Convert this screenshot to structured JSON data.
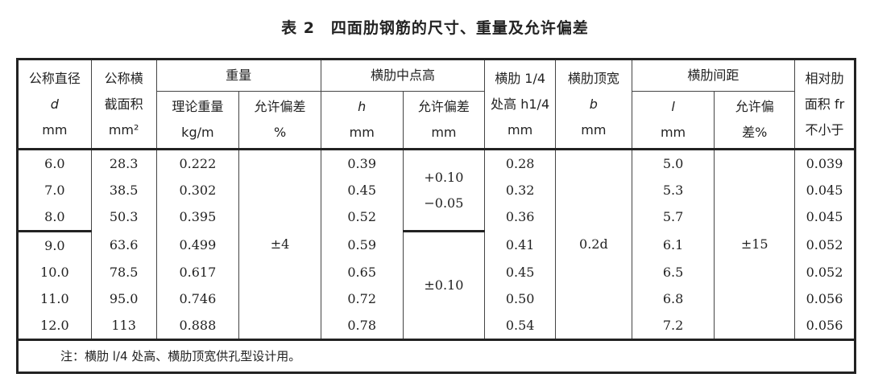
{
  "title": "表 2　四面肋钢筋的尺寸、重量及允许偏差",
  "headers": {
    "d": [
      "公称直径",
      "d",
      "mm"
    ],
    "area": [
      "公称横",
      "截面积",
      "mm²"
    ],
    "weight": "重量",
    "weight_theory": [
      "理论重量",
      "kg/m"
    ],
    "weight_tol": [
      "允许偏差",
      "%"
    ],
    "rib_mid": "横肋中点高",
    "h": [
      "h",
      "mm"
    ],
    "h_tol": [
      "允许偏差",
      "mm"
    ],
    "h14": [
      "横肋 1/4",
      "处高 h1/4",
      "mm"
    ],
    "b": [
      "横肋顶宽",
      "b",
      "mm"
    ],
    "spacing": "横肋间距",
    "l": [
      "l",
      "mm"
    ],
    "l_tol": [
      "允许偏",
      "差%"
    ],
    "fr": [
      "相对肋",
      "面积 fr",
      "不小于"
    ]
  },
  "rows": [
    {
      "d": "6.0",
      "area": "28.3",
      "w": "0.222",
      "h": "0.39",
      "h14": "0.28",
      "l": "5.0",
      "fr": "0.039"
    },
    {
      "d": "7.0",
      "area": "38.5",
      "w": "0.302",
      "h": "0.45",
      "h14": "0.32",
      "l": "5.3",
      "fr": "0.045"
    },
    {
      "d": "8.0",
      "area": "50.3",
      "w": "0.395",
      "h": "0.52",
      "h14": "0.36",
      "l": "5.7",
      "fr": "0.045"
    },
    {
      "d": "9.0",
      "area": "63.6",
      "w": "0.499",
      "h": "0.59",
      "h14": "0.41",
      "l": "6.1",
      "fr": "0.052"
    },
    {
      "d": "10.0",
      "area": "78.5",
      "w": "0.617",
      "h": "0.65",
      "h14": "0.45",
      "l": "6.5",
      "fr": "0.052"
    },
    {
      "d": "11.0",
      "area": "95.0",
      "w": "0.746",
      "h": "0.72",
      "h14": "0.50",
      "l": "6.8",
      "fr": "0.056"
    },
    {
      "d": "12.0",
      "area": "113",
      "w": "0.888",
      "h": "0.78",
      "h14": "0.54",
      "l": "7.2",
      "fr": "0.056"
    }
  ],
  "weight_tol_value": "±4",
  "h_tol_small": [
    "+0.10",
    "−0.05"
  ],
  "h_tol_large": "±0.10",
  "b_value": "0.2d",
  "l_tol_value": "±15",
  "note": "注：横肋 l/4 处高、横肋顶宽供孔型设计用。"
}
